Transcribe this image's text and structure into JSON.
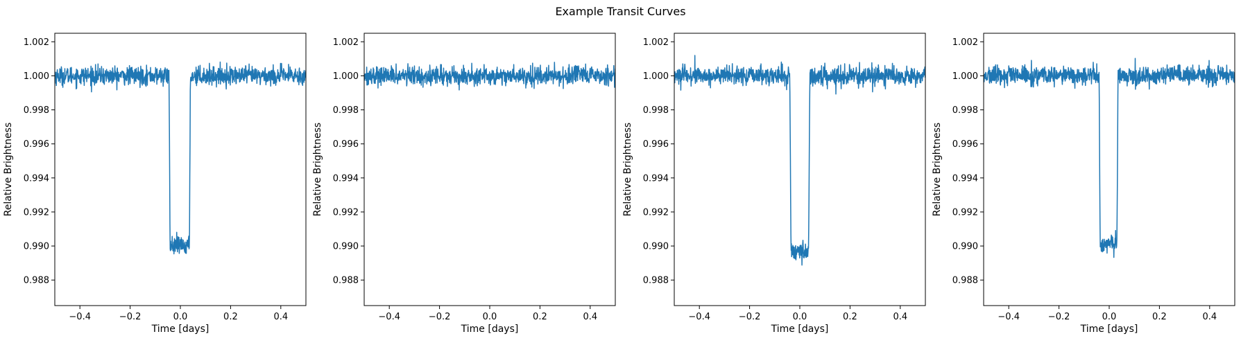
{
  "figure": {
    "title": "Example Transit Curves"
  },
  "style": {
    "line_color": "#1f77b4",
    "axes_color": "#000000",
    "background": "#ffffff"
  },
  "chart_data": [
    {
      "type": "line",
      "xlabel": "Time [days]",
      "ylabel": "Relative Brightness",
      "xlim": [
        -0.5,
        0.5
      ],
      "ylim": [
        0.9865,
        1.0025
      ],
      "xticks": [
        "−0.4",
        "−0.2",
        "0.0",
        "0.2",
        "0.4"
      ],
      "yticks": [
        "0.988",
        "0.990",
        "0.992",
        "0.994",
        "0.996",
        "0.998",
        "1.000",
        "1.002"
      ],
      "grid": false,
      "series": [
        {
          "baseline": 1.0,
          "noise_amplitude": 0.0003,
          "transit": {
            "t_start": -0.045,
            "t_end": 0.04,
            "depth_level": 0.99,
            "ingress": 0.004
          }
        }
      ]
    },
    {
      "type": "line",
      "xlabel": "Time [days]",
      "ylabel": "Relative Brightness",
      "xlim": [
        -0.5,
        0.5
      ],
      "ylim": [
        0.9865,
        1.0025
      ],
      "xticks": [
        "−0.4",
        "−0.2",
        "0.0",
        "0.2",
        "0.4"
      ],
      "yticks": [
        "0.988",
        "0.990",
        "0.992",
        "0.994",
        "0.996",
        "0.998",
        "1.000",
        "1.002"
      ],
      "grid": false,
      "series": [
        {
          "baseline": 1.0,
          "noise_amplitude": 0.0003,
          "transit": null
        }
      ]
    },
    {
      "type": "line",
      "xlabel": "Time [days]",
      "ylabel": "Relative Brightness",
      "xlim": [
        -0.5,
        0.5
      ],
      "ylim": [
        0.9865,
        1.0025
      ],
      "xticks": [
        "−0.4",
        "−0.2",
        "0.0",
        "0.2",
        "0.4"
      ],
      "yticks": [
        "0.988",
        "0.990",
        "0.992",
        "0.994",
        "0.996",
        "0.998",
        "1.000",
        "1.002"
      ],
      "grid": false,
      "series": [
        {
          "baseline": 1.0,
          "noise_amplitude": 0.0003,
          "transit": {
            "t_start": -0.04,
            "t_end": 0.04,
            "depth_level": 0.9897,
            "ingress": 0.005
          }
        }
      ]
    },
    {
      "type": "line",
      "xlabel": "Time [days]",
      "ylabel": "Relative Brightness",
      "xlim": [
        -0.5,
        0.5
      ],
      "ylim": [
        0.9865,
        1.0025
      ],
      "xticks": [
        "−0.4",
        "−0.2",
        "0.0",
        "0.2",
        "0.4"
      ],
      "yticks": [
        "0.988",
        "0.990",
        "0.992",
        "0.994",
        "0.996",
        "0.998",
        "1.000",
        "1.002"
      ],
      "grid": false,
      "series": [
        {
          "baseline": 1.0,
          "noise_amplitude": 0.0003,
          "transit": {
            "t_start": -0.04,
            "t_end": 0.035,
            "depth_level": 0.9901,
            "ingress": 0.004
          }
        }
      ]
    }
  ]
}
